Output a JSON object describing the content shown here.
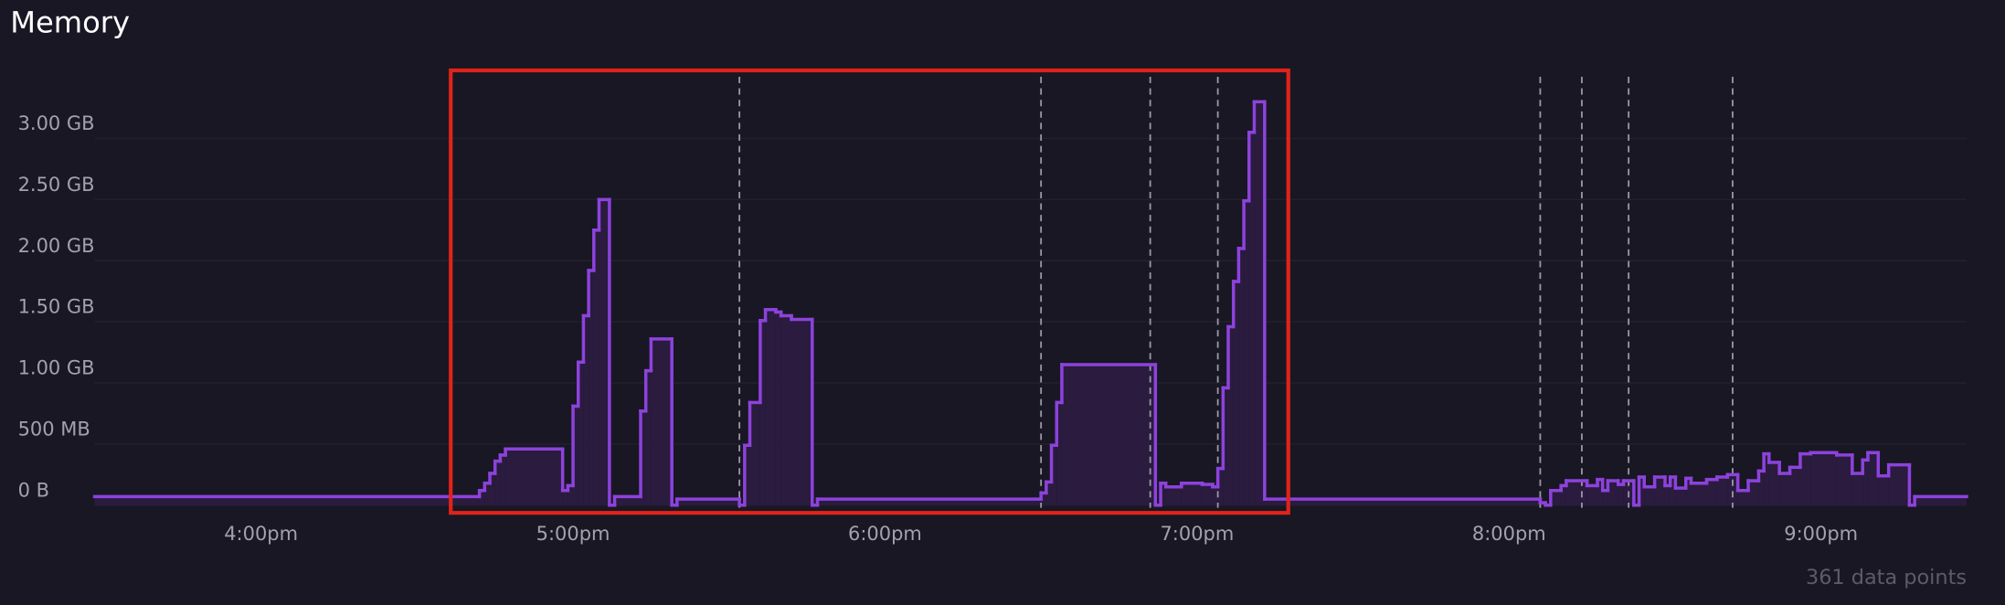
{
  "chart_data": {
    "type": "step",
    "title": "Memory",
    "annotation": "361 data points",
    "color": "#8d42dc",
    "fill": "#2a1b3f",
    "xlim": [
      "3:28pm",
      "9:28pm"
    ],
    "xticks": [
      "4:00pm",
      "5:00pm",
      "6:00pm",
      "7:00pm",
      "8:00pm",
      "9:00pm"
    ],
    "ylim": [
      0,
      3.5
    ],
    "yticks": [
      {
        "value": 0,
        "label": "0 B"
      },
      {
        "value": 0.5,
        "label": "500 MB"
      },
      {
        "value": 1,
        "label": "1.00 GB"
      },
      {
        "value": 1.5,
        "label": "1.50 GB"
      },
      {
        "value": 2,
        "label": "2.00 GB"
      },
      {
        "value": 2.5,
        "label": "2.50 GB"
      },
      {
        "value": 3,
        "label": "3.00 GB"
      }
    ],
    "grid": true,
    "markers": [
      "5:32pm",
      "6:30pm",
      "6:51pm",
      "7:04pm",
      "8:06pm",
      "8:14pm",
      "8:23pm",
      "8:43pm"
    ],
    "x": [
      "3:28pm",
      "4:42pm",
      "4:43pm",
      "4:44pm",
      "4:45pm",
      "4:46pm",
      "4:47pm",
      "4:58pm",
      "4:59pm",
      "5:00pm",
      "5:01pm",
      "5:02pm",
      "5:03pm",
      "5:04pm",
      "5:05pm",
      "5:07pm",
      "5:08pm",
      "5:13pm",
      "5:14pm",
      "5:15pm",
      "5:19pm",
      "5:20pm",
      "5:32pm",
      "5:33pm",
      "5:34pm",
      "5:36pm",
      "5:37pm",
      "5:39pm",
      "5:40pm",
      "5:42pm",
      "5:46pm",
      "5:47pm",
      "6:30pm",
      "6:31pm",
      "6:32pm",
      "6:33pm",
      "6:34pm",
      "6:52pm",
      "6:53pm",
      "6:54pm",
      "6:57pm",
      "7:01pm",
      "7:03pm",
      "7:04pm",
      "7:05pm",
      "7:06pm",
      "7:07pm",
      "7:08pm",
      "7:09pm",
      "7:10pm",
      "7:11pm",
      "7:13pm",
      "8:06pm",
      "8:07pm",
      "8:08pm",
      "8:10pm",
      "8:11pm",
      "8:15pm",
      "8:17pm",
      "8:18pm",
      "8:19pm",
      "8:21pm",
      "8:22pm",
      "8:24pm",
      "8:25pm",
      "8:26pm",
      "8:28pm",
      "8:30pm",
      "8:31pm",
      "8:32pm",
      "8:34pm",
      "8:35pm",
      "8:38pm",
      "8:40pm",
      "8:42pm",
      "8:44pm",
      "8:46pm",
      "8:48pm",
      "8:49pm",
      "8:50pm",
      "8:52pm",
      "8:54pm",
      "8:56pm",
      "8:58pm",
      "9:03pm",
      "9:06pm",
      "9:08pm",
      "9:09pm",
      "9:11pm",
      "9:13pm",
      "9:17pm",
      "9:18pm"
    ],
    "values": [
      0.07,
      0.12,
      0.18,
      0.26,
      0.36,
      0.41,
      0.46,
      0.12,
      0.16,
      0.81,
      1.17,
      1.55,
      1.92,
      2.25,
      2.5,
      0,
      0.07,
      0.77,
      1.1,
      1.36,
      0,
      0.05,
      0,
      0.49,
      0.84,
      1.51,
      1.6,
      1.58,
      1.55,
      1.52,
      0,
      0.05,
      0.1,
      0.19,
      0.49,
      0.84,
      1.15,
      0,
      0.18,
      0.15,
      0.18,
      0.17,
      0.15,
      0.3,
      0.96,
      1.46,
      1.83,
      2.1,
      2.49,
      3.05,
      3.3,
      0.05,
      0.02,
      0,
      0.12,
      0.16,
      0.2,
      0.16,
      0.21,
      0.12,
      0.2,
      0.17,
      0.2,
      0,
      0.23,
      0.15,
      0.23,
      0.16,
      0.23,
      0.14,
      0.22,
      0.18,
      0.21,
      0.23,
      0.25,
      0.12,
      0.2,
      0.28,
      0.42,
      0.35,
      0.26,
      0.31,
      0.42,
      0.43,
      0.41,
      0.26,
      0.37,
      0.43,
      0.24,
      0.33,
      0,
      0.07
    ]
  }
}
